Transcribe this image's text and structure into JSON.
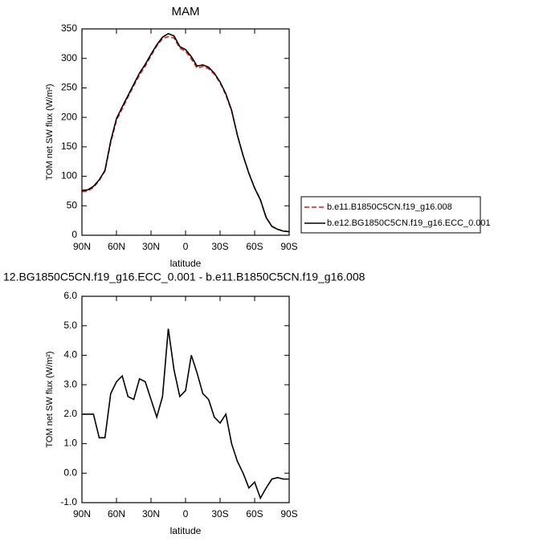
{
  "chart_data": [
    {
      "type": "line",
      "title": "MAM",
      "xlabel": "latitude",
      "ylabel": "TOM net SW flux (W/m²)",
      "x": [
        90,
        85,
        80,
        75,
        70,
        65,
        60,
        55,
        50,
        45,
        40,
        35,
        30,
        25,
        20,
        15,
        10,
        5,
        0,
        -5,
        -10,
        -15,
        -20,
        -25,
        -30,
        -35,
        -40,
        -45,
        -50,
        -55,
        -60,
        -65,
        -70,
        -75,
        -80,
        -85,
        -90
      ],
      "series": [
        {
          "name": "b.e11.B1850C5CN.f19_g16.008",
          "color": "#e31a1c",
          "dash": true,
          "values": [
            74,
            75,
            81,
            92.8,
            108.8,
            157.3,
            194.9,
            214.7,
            234.4,
            253.5,
            271.8,
            286.9,
            304.5,
            321.1,
            333.4,
            337.1,
            334.5,
            317.4,
            312.2,
            299,
            283.6,
            286.3,
            282.5,
            273.1,
            258.3,
            238,
            211,
            169.6,
            135,
            105.5,
            80.3,
            60.85,
            30.5,
            15.2,
            10.15,
            7.2,
            6.2
          ]
        },
        {
          "name": "b.e12.BG1850C5CN.f19_g16.ECC_0.001",
          "color": "#000000",
          "dash": false,
          "values": [
            76,
            77,
            83,
            94,
            110,
            160,
            198,
            218,
            237,
            256,
            275,
            290,
            307,
            323,
            336,
            342,
            338,
            320,
            315,
            303,
            287,
            289,
            285,
            275,
            260,
            240,
            212,
            170,
            135,
            105,
            80,
            60,
            30,
            15,
            10,
            7,
            6
          ]
        }
      ],
      "xlim": [
        90,
        -90
      ],
      "xticks": [
        {
          "value": 90,
          "label": "90N"
        },
        {
          "value": 60,
          "label": "60N"
        },
        {
          "value": 30,
          "label": "30N"
        },
        0,
        {
          "value": -30,
          "label": "30S"
        },
        {
          "value": -60,
          "label": "60S"
        },
        {
          "value": -90,
          "label": "90S"
        }
      ],
      "ylim": [
        0,
        350
      ],
      "yticks": [
        0,
        50,
        100,
        150,
        200,
        250,
        300,
        350
      ],
      "legend": "right"
    },
    {
      "type": "line",
      "title": "12.BG1850C5CN.f19_g16.ECC_0.001 - b.e11.B1850C5CN.f19_g16.008",
      "xlabel": "latitude",
      "ylabel": "TOM net SW flux (W/m²)",
      "x": [
        90,
        85,
        80,
        75,
        70,
        65,
        60,
        55,
        50,
        45,
        40,
        35,
        30,
        25,
        20,
        15,
        10,
        5,
        0,
        -5,
        -10,
        -15,
        -20,
        -25,
        -30,
        -35,
        -40,
        -45,
        -50,
        -55,
        -60,
        -65,
        -70,
        -75,
        -80,
        -85,
        -90
      ],
      "series": [
        {
          "color": "#000000",
          "values": [
            2.0,
            2.0,
            2.0,
            1.2,
            1.2,
            2.7,
            3.1,
            3.3,
            2.6,
            2.5,
            3.2,
            3.1,
            2.5,
            1.9,
            2.6,
            4.9,
            3.5,
            2.6,
            2.8,
            4.0,
            3.4,
            2.7,
            2.5,
            1.9,
            1.7,
            2.0,
            1.0,
            0.4,
            0.0,
            -0.5,
            -0.3,
            -0.85,
            -0.5,
            -0.2,
            -0.15,
            -0.2,
            -0.2
          ]
        }
      ],
      "xlim": [
        90,
        -90
      ],
      "xticks": [
        {
          "value": 90,
          "label": "90N"
        },
        {
          "value": 60,
          "label": "60N"
        },
        {
          "value": 30,
          "label": "30N"
        },
        0,
        {
          "value": -30,
          "label": "30S"
        },
        {
          "value": -60,
          "label": "60S"
        },
        {
          "value": -90,
          "label": "90S"
        }
      ],
      "ylim": [
        -1,
        6
      ],
      "yticks": [
        {
          "value": -1,
          "label": "-1.0"
        },
        {
          "value": 0,
          "label": "0.0"
        },
        {
          "value": 1,
          "label": "1.0"
        },
        {
          "value": 2,
          "label": "2.0"
        },
        {
          "value": 3,
          "label": "3.0"
        },
        {
          "value": 4,
          "label": "4.0"
        },
        {
          "value": 5,
          "label": "5.0"
        },
        {
          "value": 6,
          "label": "6.0"
        }
      ]
    }
  ]
}
